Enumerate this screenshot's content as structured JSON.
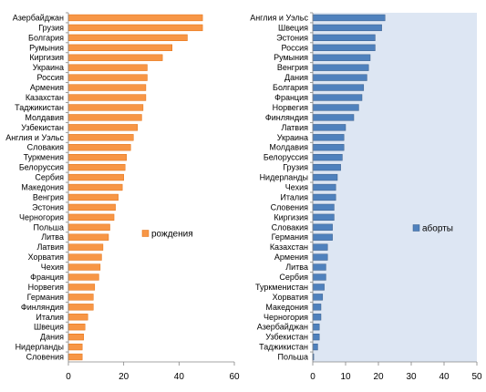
{
  "chart_data": [
    {
      "type": "bar",
      "orientation": "horizontal",
      "categories": [
        "Азербайджан",
        "Грузия",
        "Болгария",
        "Румыния",
        "Киргизия",
        "Украина",
        "Россия",
        "Армения",
        "Казахстан",
        "Таджикистан",
        "Молдавия",
        "Узбекистан",
        "Англия и Уэльс",
        "Словакия",
        "Туркмения",
        "Белоруссия",
        "Сербия",
        "Македония",
        "Венгрия",
        "Эстония",
        "Черногория",
        "Польша",
        "Литва",
        "Латвия",
        "Хорватия",
        "Чехия",
        "Франция",
        "Норвегия",
        "Германия",
        "Финляндия",
        "Италия",
        "Швеция",
        "Дания",
        "Нидерланды",
        "Словения"
      ],
      "series": [
        {
          "name": "рождения",
          "values": [
            48.5,
            48.5,
            43,
            37.5,
            34,
            28.5,
            28.5,
            28,
            28,
            27,
            26.5,
            25,
            23.5,
            22.5,
            21,
            20.5,
            20,
            19.5,
            18,
            17,
            16.5,
            15,
            14.5,
            12.5,
            12,
            11.5,
            11,
            9.5,
            9,
            9,
            7,
            6,
            5.5,
            5,
            5
          ]
        }
      ],
      "xlim": [
        0,
        60
      ],
      "xticks": [
        0,
        20,
        40,
        60
      ],
      "legend_position": "right",
      "grid": false,
      "colors": {
        "bar": "#F79646",
        "bar_edge": "#E46C0A",
        "background": "#ffffff"
      }
    },
    {
      "type": "bar",
      "orientation": "horizontal",
      "categories": [
        "Англия и Уэльс",
        "Швеция",
        "Эстония",
        "Россия",
        "Румыния",
        "Венгрия",
        "Дания",
        "Болгария",
        "Франция",
        "Норвегия",
        "Финляндия",
        "Латвия",
        "Украина",
        "Молдавия",
        "Белоруссия",
        "Грузия",
        "Нидерланды",
        "Чехия",
        "Италия",
        "Словения",
        "Киргизия",
        "Словакия",
        "Германия",
        "Казахстан",
        "Армения",
        "Литва",
        "Сербия",
        "Туркменистан",
        "Хорватия",
        "Македония",
        "Черногория",
        "Азербайджан",
        "Узбекистан",
        "Таджикистан",
        "Польша"
      ],
      "series": [
        {
          "name": "аборты",
          "values": [
            22,
            21,
            19,
            19,
            17.5,
            17,
            16.5,
            15.5,
            15,
            14,
            12.5,
            10,
            9.5,
            9.5,
            9,
            8.5,
            7.5,
            7,
            7,
            6.5,
            6.5,
            6,
            6,
            4.5,
            4.5,
            4,
            4,
            3.5,
            3,
            2.5,
            2.5,
            2,
            2,
            1.5,
            0.3
          ]
        }
      ],
      "xlim": [
        0,
        50
      ],
      "xticks": [
        0,
        10,
        20,
        30,
        40,
        50
      ],
      "legend_position": "right",
      "grid": false,
      "colors": {
        "bar": "#4F81BD",
        "bar_edge": "#385D8A",
        "background": "#dde6f3"
      }
    }
  ]
}
